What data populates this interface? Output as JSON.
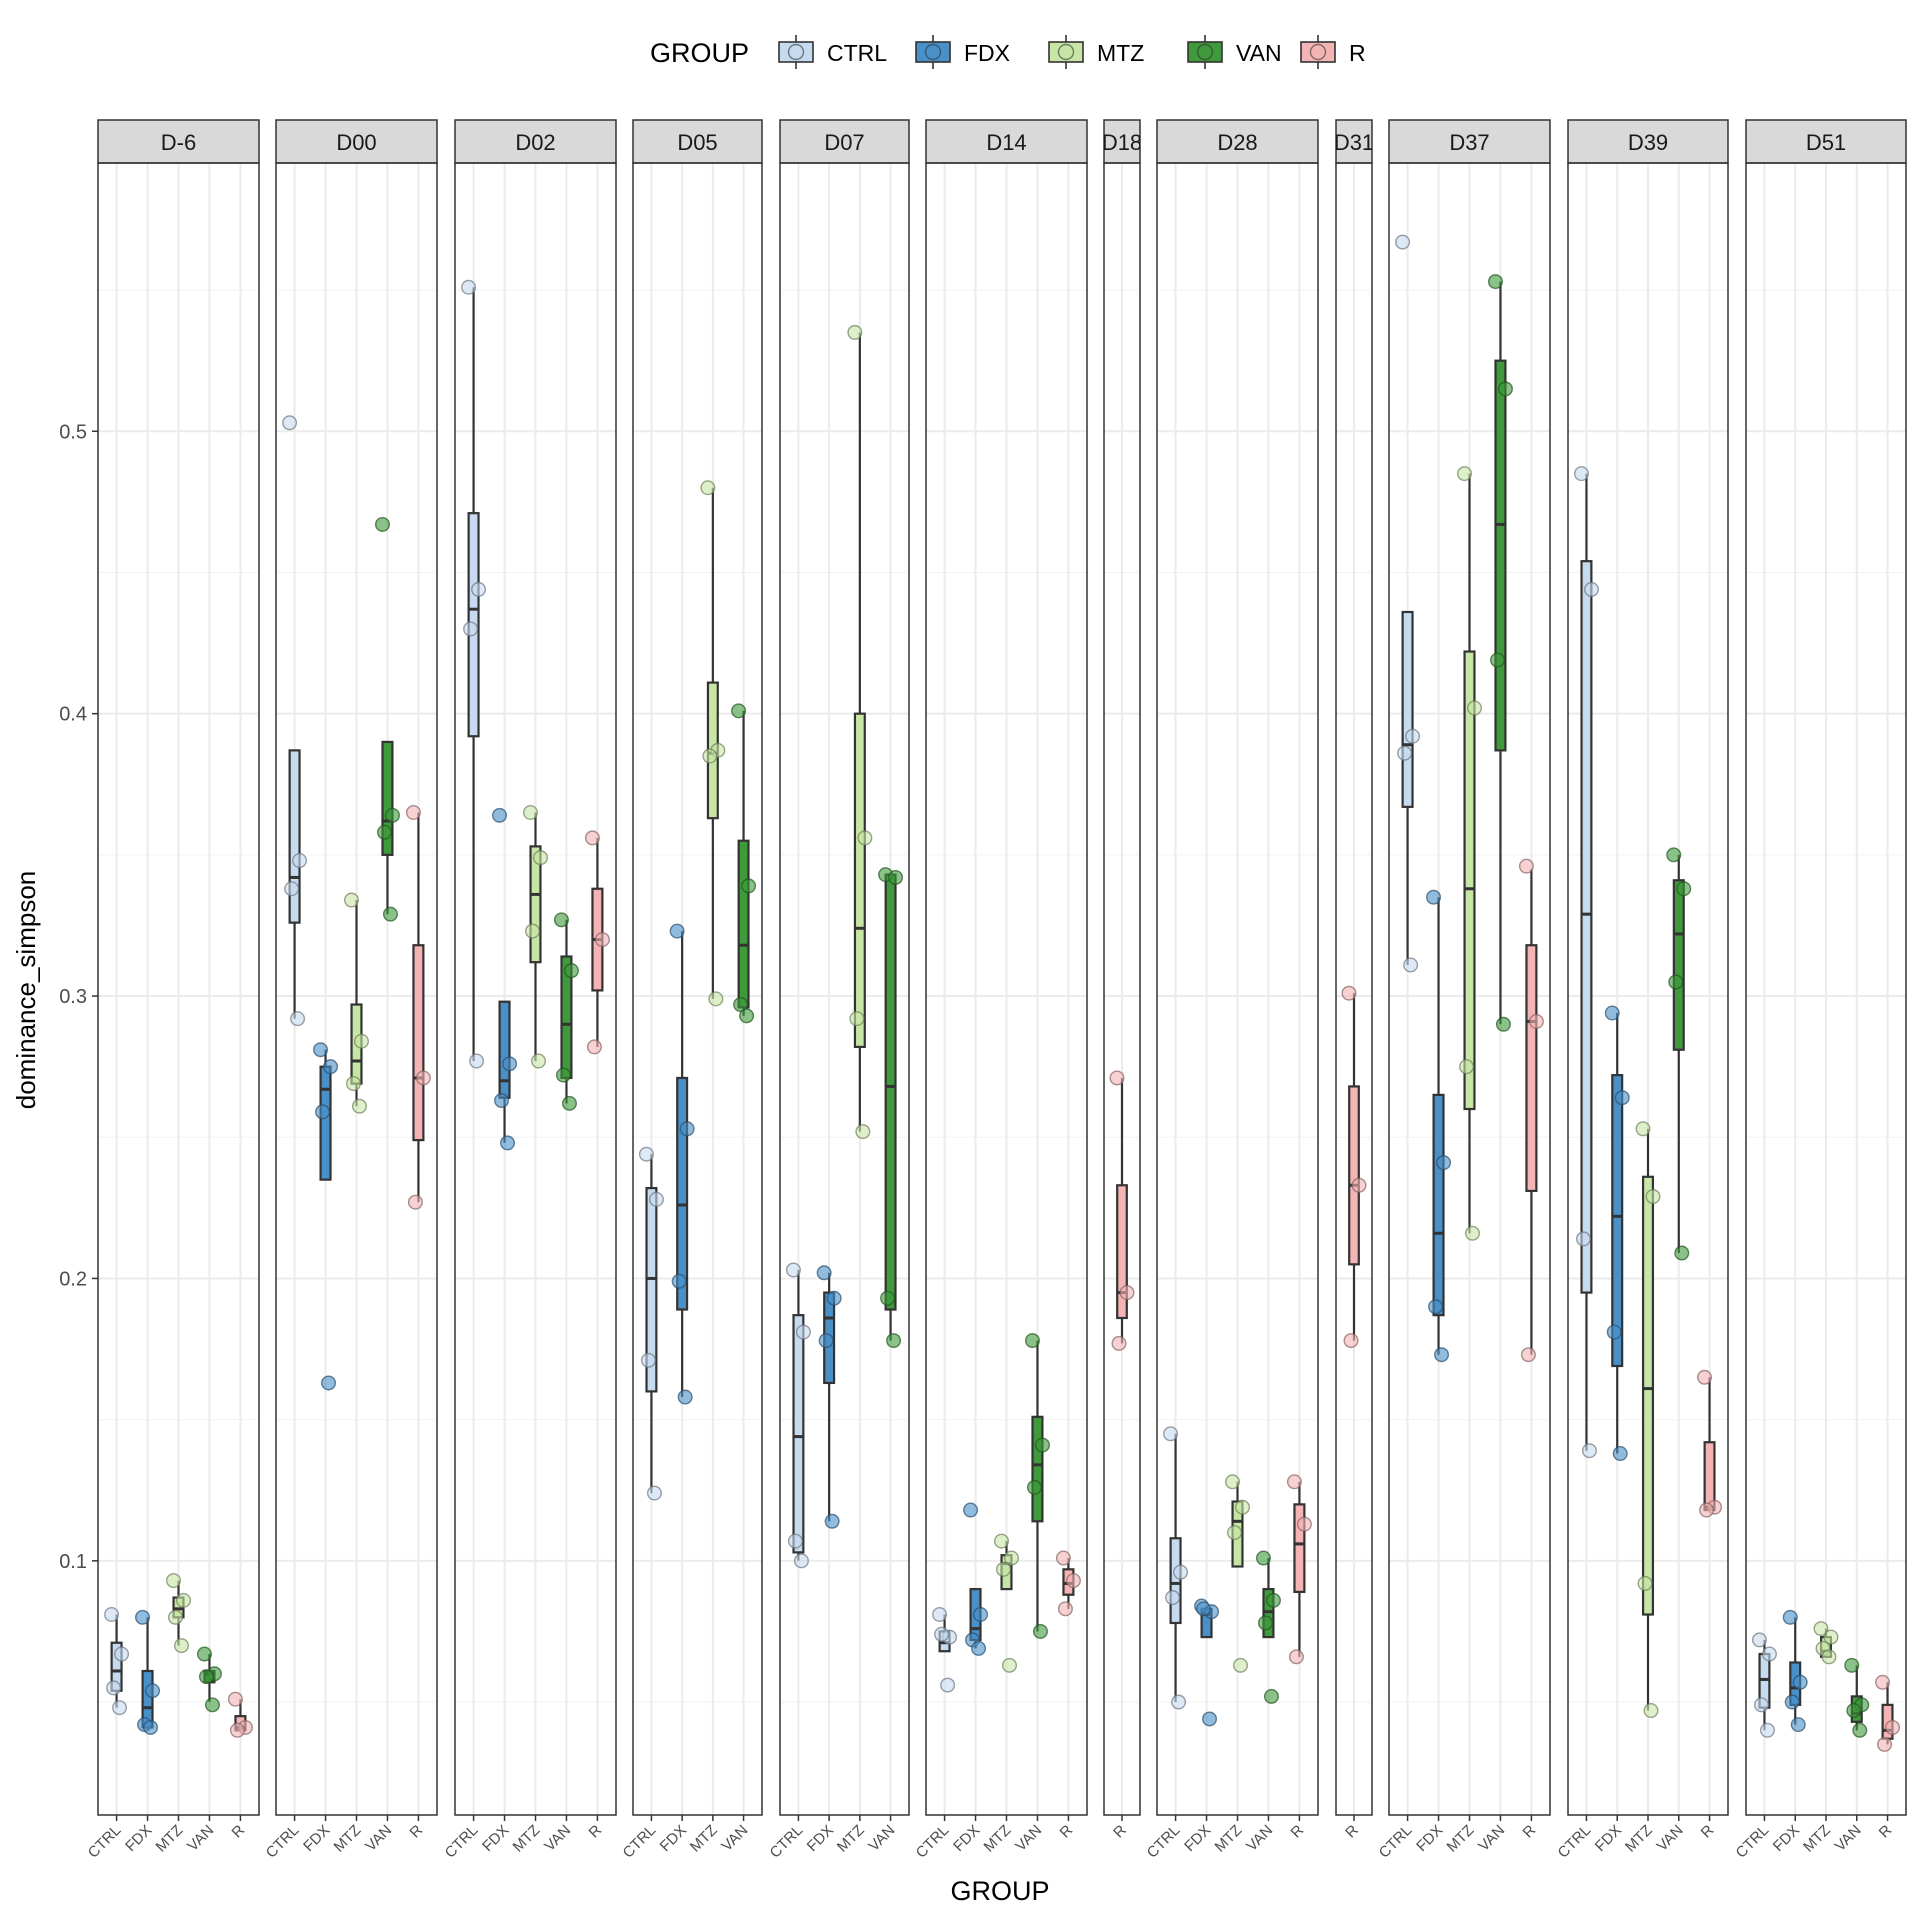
{
  "chart_data": {
    "type": "boxplot",
    "xlabel": "GROUP",
    "ylabel": "dominance_simpson",
    "ylim": [
      0.01,
      0.595
    ],
    "y_ticks": [
      0.1,
      0.2,
      0.3,
      0.4,
      0.5
    ],
    "y_tick_labels": [
      "0.1",
      "0.2",
      "0.3",
      "0.4",
      "0.5"
    ],
    "grid": true,
    "legend": {
      "title": "GROUP",
      "position": "top",
      "entries": [
        "CTRL",
        "FDX",
        "MTZ",
        "VAN",
        "R"
      ]
    },
    "colors": {
      "CTRL": "#c6dbef",
      "FDX": "#4a90c8",
      "MTZ": "#c7e6a6",
      "VAN": "#3e9a3a",
      "R": "#f4b4b4"
    },
    "panels": [
      {
        "label": "D-6",
        "groups": [
          {
            "group": "CTRL",
            "q1": 0.054,
            "median": 0.061,
            "q3": 0.071,
            "whisker_low": 0.048,
            "whisker_high": 0.081,
            "points": [
              0.081,
              0.067,
              0.055,
              0.048
            ]
          },
          {
            "group": "FDX",
            "q1": 0.041,
            "median": 0.048,
            "q3": 0.061,
            "whisker_low": 0.04,
            "whisker_high": 0.08,
            "points": [
              0.08,
              0.054,
              0.042,
              0.041
            ]
          },
          {
            "group": "MTZ",
            "q1": 0.08,
            "median": 0.083,
            "q3": 0.087,
            "whisker_low": 0.07,
            "whisker_high": 0.093,
            "points": [
              0.093,
              0.086,
              0.08,
              0.07
            ]
          },
          {
            "group": "VAN",
            "q1": 0.057,
            "median": 0.06,
            "q3": 0.061,
            "whisker_low": 0.05,
            "whisker_high": 0.067,
            "points": [
              0.067,
              0.06,
              0.059,
              0.049
            ]
          },
          {
            "group": "R",
            "q1": 0.04,
            "median": 0.041,
            "q3": 0.045,
            "whisker_low": 0.04,
            "whisker_high": 0.051,
            "points": [
              0.051,
              0.041,
              0.04
            ]
          }
        ]
      },
      {
        "label": "D00",
        "groups": [
          {
            "group": "CTRL",
            "q1": 0.326,
            "median": 0.342,
            "q3": 0.387,
            "whisker_low": 0.292,
            "whisker_high": 0.387,
            "points": [
              0.503,
              0.348,
              0.338,
              0.292
            ]
          },
          {
            "group": "FDX",
            "q1": 0.235,
            "median": 0.267,
            "q3": 0.275,
            "whisker_low": 0.235,
            "whisker_high": 0.281,
            "points": [
              0.281,
              0.275,
              0.259,
              0.163
            ]
          },
          {
            "group": "MTZ",
            "q1": 0.269,
            "median": 0.277,
            "q3": 0.297,
            "whisker_low": 0.261,
            "whisker_high": 0.334,
            "points": [
              0.334,
              0.284,
              0.269,
              0.261
            ]
          },
          {
            "group": "VAN",
            "q1": 0.35,
            "median": 0.362,
            "q3": 0.39,
            "whisker_low": 0.329,
            "whisker_high": 0.39,
            "points": [
              0.467,
              0.364,
              0.358,
              0.329
            ]
          },
          {
            "group": "R",
            "q1": 0.249,
            "median": 0.271,
            "q3": 0.318,
            "whisker_low": 0.227,
            "whisker_high": 0.365,
            "points": [
              0.365,
              0.271,
              0.227
            ]
          }
        ]
      },
      {
        "label": "D02",
        "groups": [
          {
            "group": "CTRL",
            "q1": 0.392,
            "median": 0.437,
            "q3": 0.471,
            "whisker_low": 0.277,
            "whisker_high": 0.551,
            "points": [
              0.551,
              0.444,
              0.43,
              0.277
            ]
          },
          {
            "group": "FDX",
            "q1": 0.264,
            "median": 0.27,
            "q3": 0.298,
            "whisker_low": 0.248,
            "whisker_high": 0.298,
            "points": [
              0.364,
              0.276,
              0.263,
              0.248
            ]
          },
          {
            "group": "MTZ",
            "q1": 0.312,
            "median": 0.336,
            "q3": 0.353,
            "whisker_low": 0.277,
            "whisker_high": 0.365,
            "points": [
              0.365,
              0.349,
              0.323,
              0.277
            ]
          },
          {
            "group": "VAN",
            "q1": 0.271,
            "median": 0.29,
            "q3": 0.314,
            "whisker_low": 0.262,
            "whisker_high": 0.327,
            "points": [
              0.327,
              0.309,
              0.272,
              0.262
            ]
          },
          {
            "group": "R",
            "q1": 0.302,
            "median": 0.32,
            "q3": 0.338,
            "whisker_low": 0.282,
            "whisker_high": 0.356,
            "points": [
              0.356,
              0.32,
              0.282
            ]
          }
        ]
      },
      {
        "label": "D05",
        "groups": [
          {
            "group": "CTRL",
            "q1": 0.16,
            "median": 0.2,
            "q3": 0.232,
            "whisker_low": 0.124,
            "whisker_high": 0.244,
            "points": [
              0.244,
              0.228,
              0.171,
              0.124
            ]
          },
          {
            "group": "FDX",
            "q1": 0.189,
            "median": 0.226,
            "q3": 0.271,
            "whisker_low": 0.158,
            "whisker_high": 0.323,
            "points": [
              0.323,
              0.253,
              0.199,
              0.158
            ]
          },
          {
            "group": "MTZ",
            "q1": 0.363,
            "median": 0.386,
            "q3": 0.411,
            "whisker_low": 0.299,
            "whisker_high": 0.48,
            "points": [
              0.48,
              0.387,
              0.385,
              0.299
            ]
          },
          {
            "group": "VAN",
            "q1": 0.296,
            "median": 0.318,
            "q3": 0.355,
            "whisker_low": 0.293,
            "whisker_high": 0.401,
            "points": [
              0.401,
              0.339,
              0.297,
              0.293
            ]
          }
        ]
      },
      {
        "label": "D07",
        "groups": [
          {
            "group": "CTRL",
            "q1": 0.103,
            "median": 0.144,
            "q3": 0.187,
            "whisker_low": 0.1,
            "whisker_high": 0.203,
            "points": [
              0.203,
              0.181,
              0.107,
              0.1
            ]
          },
          {
            "group": "FDX",
            "q1": 0.163,
            "median": 0.186,
            "q3": 0.195,
            "whisker_low": 0.114,
            "whisker_high": 0.202,
            "points": [
              0.202,
              0.193,
              0.178,
              0.114
            ]
          },
          {
            "group": "MTZ",
            "q1": 0.282,
            "median": 0.324,
            "q3": 0.4,
            "whisker_low": 0.252,
            "whisker_high": 0.535,
            "points": [
              0.535,
              0.356,
              0.292,
              0.252
            ]
          },
          {
            "group": "VAN",
            "q1": 0.189,
            "median": 0.268,
            "q3": 0.343,
            "whisker_low": 0.178,
            "whisker_high": 0.343,
            "points": [
              0.343,
              0.342,
              0.193,
              0.178
            ]
          }
        ]
      },
      {
        "label": "D14",
        "groups": [
          {
            "group": "CTRL",
            "q1": 0.068,
            "median": 0.071,
            "q3": 0.075,
            "whisker_low": 0.068,
            "whisker_high": 0.081,
            "points": [
              0.081,
              0.073,
              0.074,
              0.056
            ]
          },
          {
            "group": "FDX",
            "q1": 0.072,
            "median": 0.076,
            "q3": 0.09,
            "whisker_low": 0.069,
            "whisker_high": 0.09,
            "points": [
              0.118,
              0.081,
              0.072,
              0.069
            ]
          },
          {
            "group": "MTZ",
            "q1": 0.09,
            "median": 0.099,
            "q3": 0.102,
            "whisker_low": 0.09,
            "whisker_high": 0.107,
            "points": [
              0.107,
              0.101,
              0.097,
              0.063
            ]
          },
          {
            "group": "VAN",
            "q1": 0.114,
            "median": 0.134,
            "q3": 0.151,
            "whisker_low": 0.075,
            "whisker_high": 0.178,
            "points": [
              0.178,
              0.141,
              0.126,
              0.075
            ]
          },
          {
            "group": "R",
            "q1": 0.088,
            "median": 0.092,
            "q3": 0.097,
            "whisker_low": 0.083,
            "whisker_high": 0.101,
            "points": [
              0.101,
              0.093,
              0.083
            ]
          }
        ]
      },
      {
        "label": "D18",
        "groups": [
          {
            "group": "R",
            "q1": 0.186,
            "median": 0.195,
            "q3": 0.233,
            "whisker_low": 0.177,
            "whisker_high": 0.271,
            "points": [
              0.271,
              0.195,
              0.177
            ]
          }
        ]
      },
      {
        "label": "D28",
        "groups": [
          {
            "group": "CTRL",
            "q1": 0.078,
            "median": 0.092,
            "q3": 0.108,
            "whisker_low": 0.05,
            "whisker_high": 0.145,
            "points": [
              0.145,
              0.096,
              0.087,
              0.05
            ]
          },
          {
            "group": "FDX",
            "q1": 0.073,
            "median": 0.081,
            "q3": 0.083,
            "whisker_low": 0.073,
            "whisker_high": 0.084,
            "points": [
              0.084,
              0.082,
              0.083,
              0.044
            ]
          },
          {
            "group": "MTZ",
            "q1": 0.098,
            "median": 0.114,
            "q3": 0.121,
            "whisker_low": 0.098,
            "whisker_high": 0.128,
            "points": [
              0.128,
              0.119,
              0.11,
              0.063
            ]
          },
          {
            "group": "VAN",
            "q1": 0.073,
            "median": 0.082,
            "q3": 0.09,
            "whisker_low": 0.073,
            "whisker_high": 0.101,
            "points": [
              0.101,
              0.086,
              0.078,
              0.052
            ]
          },
          {
            "group": "R",
            "q1": 0.089,
            "median": 0.106,
            "q3": 0.12,
            "whisker_low": 0.066,
            "whisker_high": 0.128,
            "points": [
              0.128,
              0.113,
              0.066
            ]
          }
        ]
      },
      {
        "label": "D31",
        "groups": [
          {
            "group": "R",
            "q1": 0.205,
            "median": 0.233,
            "q3": 0.268,
            "whisker_low": 0.178,
            "whisker_high": 0.301,
            "points": [
              0.301,
              0.233,
              0.178
            ]
          }
        ]
      },
      {
        "label": "D37",
        "groups": [
          {
            "group": "CTRL",
            "q1": 0.367,
            "median": 0.389,
            "q3": 0.436,
            "whisker_low": 0.311,
            "whisker_high": 0.436,
            "points": [
              0.567,
              0.392,
              0.386,
              0.311
            ]
          },
          {
            "group": "FDX",
            "q1": 0.187,
            "median": 0.216,
            "q3": 0.265,
            "whisker_low": 0.173,
            "whisker_high": 0.335,
            "points": [
              0.335,
              0.241,
              0.19,
              0.173
            ]
          },
          {
            "group": "MTZ",
            "q1": 0.26,
            "median": 0.338,
            "q3": 0.422,
            "whisker_low": 0.216,
            "whisker_high": 0.485,
            "points": [
              0.485,
              0.402,
              0.275,
              0.216
            ]
          },
          {
            "group": "VAN",
            "q1": 0.387,
            "median": 0.467,
            "q3": 0.525,
            "whisker_low": 0.29,
            "whisker_high": 0.553,
            "points": [
              0.553,
              0.515,
              0.419,
              0.29
            ]
          },
          {
            "group": "R",
            "q1": 0.231,
            "median": 0.291,
            "q3": 0.318,
            "whisker_low": 0.173,
            "whisker_high": 0.345,
            "points": [
              0.346,
              0.291,
              0.173
            ]
          }
        ]
      },
      {
        "label": "D39",
        "groups": [
          {
            "group": "CTRL",
            "q1": 0.195,
            "median": 0.329,
            "q3": 0.454,
            "whisker_low": 0.139,
            "whisker_high": 0.485,
            "points": [
              0.485,
              0.444,
              0.214,
              0.139
            ]
          },
          {
            "group": "FDX",
            "q1": 0.169,
            "median": 0.222,
            "q3": 0.272,
            "whisker_low": 0.138,
            "whisker_high": 0.294,
            "points": [
              0.294,
              0.264,
              0.181,
              0.138
            ]
          },
          {
            "group": "MTZ",
            "q1": 0.081,
            "median": 0.161,
            "q3": 0.236,
            "whisker_low": 0.047,
            "whisker_high": 0.253,
            "points": [
              0.253,
              0.229,
              0.092,
              0.047
            ]
          },
          {
            "group": "VAN",
            "q1": 0.281,
            "median": 0.322,
            "q3": 0.341,
            "whisker_low": 0.209,
            "whisker_high": 0.35,
            "points": [
              0.35,
              0.338,
              0.305,
              0.209
            ]
          },
          {
            "group": "R",
            "q1": 0.118,
            "median": 0.119,
            "q3": 0.142,
            "whisker_low": 0.118,
            "whisker_high": 0.165,
            "points": [
              0.165,
              0.119,
              0.118
            ]
          }
        ]
      },
      {
        "label": "D51",
        "groups": [
          {
            "group": "CTRL",
            "q1": 0.048,
            "median": 0.058,
            "q3": 0.067,
            "whisker_low": 0.04,
            "whisker_high": 0.072,
            "points": [
              0.072,
              0.067,
              0.049,
              0.04
            ]
          },
          {
            "group": "FDX",
            "q1": 0.049,
            "median": 0.055,
            "q3": 0.064,
            "whisker_low": 0.042,
            "whisker_high": 0.08,
            "points": [
              0.08,
              0.057,
              0.05,
              0.042
            ]
          },
          {
            "group": "MTZ",
            "q1": 0.066,
            "median": 0.068,
            "q3": 0.073,
            "whisker_low": 0.066,
            "whisker_high": 0.076,
            "points": [
              0.076,
              0.073,
              0.069,
              0.066
            ]
          },
          {
            "group": "VAN",
            "q1": 0.043,
            "median": 0.046,
            "q3": 0.052,
            "whisker_low": 0.04,
            "whisker_high": 0.063,
            "points": [
              0.063,
              0.049,
              0.047,
              0.04
            ]
          },
          {
            "group": "R",
            "q1": 0.037,
            "median": 0.04,
            "q3": 0.049,
            "whisker_low": 0.035,
            "whisker_high": 0.057,
            "points": [
              0.057,
              0.041,
              0.035
            ]
          }
        ]
      }
    ]
  }
}
